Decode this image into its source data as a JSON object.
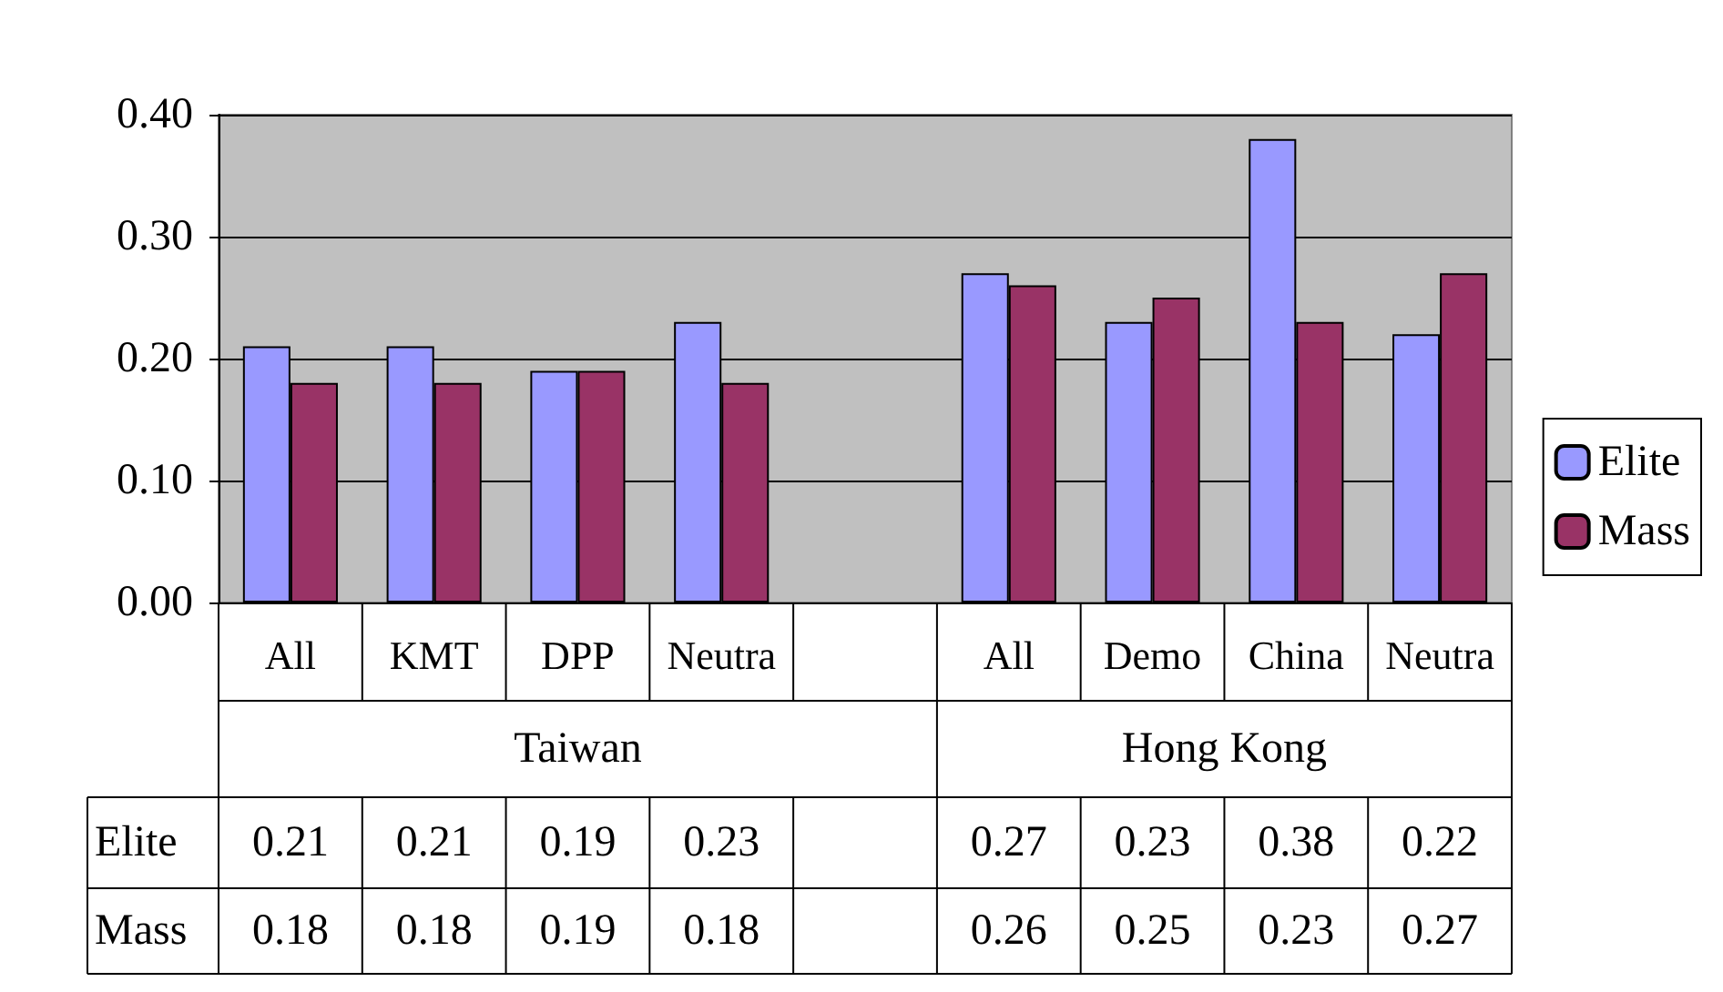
{
  "chart_data": {
    "type": "bar",
    "categories": [
      "All",
      "KMT",
      "DPP",
      "Neutra",
      null,
      "All",
      "Demo",
      "China",
      "Neutra"
    ],
    "series": [
      {
        "name": "Elite",
        "color": "#9999ff",
        "values": [
          0.21,
          0.21,
          0.19,
          0.23,
          null,
          0.27,
          0.23,
          0.38,
          0.22
        ]
      },
      {
        "name": "Mass",
        "color": "#993366",
        "values": [
          0.18,
          0.18,
          0.19,
          0.18,
          null,
          0.26,
          0.25,
          0.23,
          0.27
        ]
      }
    ],
    "annotations": [
      "Taiwan",
      "Hong Kong"
    ],
    "ylim": [
      0,
      0.4
    ],
    "yticks": [
      {
        "value": 0,
        "label": "0.00"
      },
      {
        "value": 0.1,
        "label": "0.10"
      },
      {
        "value": 0.2,
        "label": "0.20"
      },
      {
        "value": 0.3,
        "label": "0.30"
      },
      {
        "value": 0.4,
        "label": "0.40"
      }
    ],
    "grid": "y",
    "legend": "right",
    "data_labels": true
  }
}
